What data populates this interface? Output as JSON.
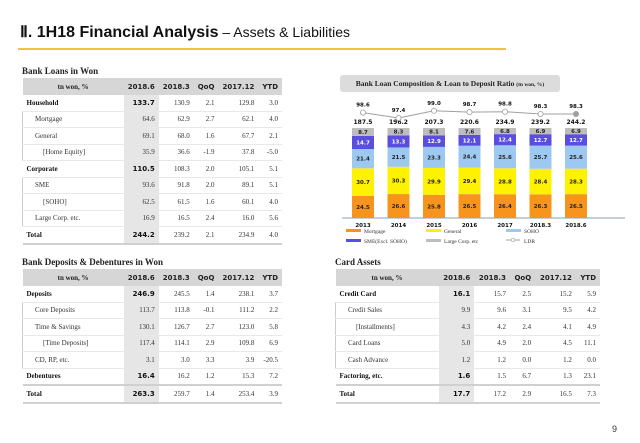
{
  "header": {
    "title_main": "Ⅱ. 1H18 Financial Analysis",
    "title_sub": " – Assets & Liabilities",
    "accent_color": "#f0c33c"
  },
  "page_number": "9",
  "bank_loans": {
    "title": "Bank Loans in Won",
    "columns": [
      "tn won, %",
      "2018.6",
      "2018.3",
      "QoQ",
      "2017.12",
      "YTD"
    ],
    "rows": [
      {
        "label": "Household",
        "level": 0,
        "values": [
          "133.7",
          "130.9",
          "2.1",
          "129.8",
          "3.0"
        ]
      },
      {
        "label": "Mortgage",
        "level": 1,
        "values": [
          "64.6",
          "62.9",
          "2.7",
          "62.1",
          "4.0"
        ]
      },
      {
        "label": "General",
        "level": 1,
        "values": [
          "69.1",
          "68.0",
          "1.6",
          "67.7",
          "2.1"
        ]
      },
      {
        "label": "[Home Equity]",
        "level": 2,
        "values": [
          "35.9",
          "36.6",
          "-1.9",
          "37.8",
          "-5.0"
        ]
      },
      {
        "label": "Corporate",
        "level": 0,
        "values": [
          "110.5",
          "108.3",
          "2.0",
          "105.1",
          "5.1"
        ]
      },
      {
        "label": "SME",
        "level": 1,
        "values": [
          "93.6",
          "91.8",
          "2.0",
          "89.1",
          "5.1"
        ]
      },
      {
        "label": "[SOHO]",
        "level": 2,
        "values": [
          "62.5",
          "61.5",
          "1.6",
          "60.1",
          "4.0"
        ]
      },
      {
        "label": "Large Corp. etc.",
        "level": 1,
        "values": [
          "16.9",
          "16.5",
          "2.4",
          "16.0",
          "5.6"
        ]
      },
      {
        "label": "Total",
        "level": 0,
        "values": [
          "244.2",
          "239.2",
          "2.1",
          "234.9",
          "4.0"
        ]
      }
    ]
  },
  "deposits": {
    "title": "Bank Deposits & Debentures in Won",
    "columns": [
      "tn won, %",
      "2018.6",
      "2018.3",
      "QoQ",
      "2017.12",
      "YTD"
    ],
    "rows": [
      {
        "label": "Deposits",
        "level": 0,
        "values": [
          "246.9",
          "245.5",
          "1.4",
          "238.1",
          "3.7"
        ]
      },
      {
        "label": "Core Deposits",
        "level": 1,
        "values": [
          "113.7",
          "113.8",
          "-0.1",
          "111.2",
          "2.2"
        ]
      },
      {
        "label": "Time & Savings",
        "level": 1,
        "values": [
          "130.1",
          "126.7",
          "2.7",
          "123.0",
          "5.8"
        ]
      },
      {
        "label": "[Time Deposits]",
        "level": 2,
        "values": [
          "117.4",
          "114.1",
          "2.9",
          "109.8",
          "6.9"
        ]
      },
      {
        "label": "CD, RP, etc.",
        "level": 1,
        "values": [
          "3.1",
          "3.0",
          "3.3",
          "3.9",
          "-20.5"
        ]
      },
      {
        "label": "Debentures",
        "level": 0,
        "values": [
          "16.4",
          "16.2",
          "1.2",
          "15.3",
          "7.2"
        ]
      },
      {
        "label": "Total",
        "level": 0,
        "values": [
          "263.3",
          "259.7",
          "1.4",
          "253.4",
          "3.9"
        ]
      }
    ]
  },
  "card_assets": {
    "title": "Card Assets",
    "columns": [
      "tn won, %",
      "2018.6",
      "2018.3",
      "QoQ",
      "2017.12",
      "YTD"
    ],
    "rows": [
      {
        "label": "Credit Card",
        "level": 0,
        "values": [
          "16.1",
          "15.7",
          "2.5",
          "15.2",
          "5.9"
        ]
      },
      {
        "label": "Credit Sales",
        "level": 1,
        "values": [
          "9.9",
          "9.6",
          "3.1",
          "9.5",
          "4.2"
        ]
      },
      {
        "label": "[Installments]",
        "level": 2,
        "values": [
          "4.3",
          "4.2",
          "2.4",
          "4.1",
          "4.9"
        ]
      },
      {
        "label": "Card Loans",
        "level": 1,
        "values": [
          "5.0",
          "4.9",
          "2.0",
          "4.5",
          "11.1"
        ]
      },
      {
        "label": "Cash Advance",
        "level": 1,
        "values": [
          "1.2",
          "1.2",
          "0.0",
          "1.2",
          "0.0"
        ]
      },
      {
        "label": "Factoring, etc.",
        "level": 0,
        "values": [
          "1.6",
          "1.5",
          "6.7",
          "1.3",
          "23.1"
        ]
      },
      {
        "label": "Total",
        "level": 0,
        "values": [
          "17.7",
          "17.2",
          "2.9",
          "16.5",
          "7.3"
        ]
      }
    ]
  },
  "chart_data": {
    "type": "bar",
    "stacked": true,
    "title": "Bank Loan Composition & Loan to Deposit Ratio",
    "title_unit": "(tn won, %)",
    "categories": [
      "2013",
      "2014",
      "2015",
      "2016",
      "2017",
      "2018.3",
      "2018.6"
    ],
    "totals": [
      "187.5",
      "196.2",
      "207.3",
      "220.6",
      "234.9",
      "239.2",
      "244.2"
    ],
    "series": [
      {
        "name": "Mortgage",
        "color": "#f7941d",
        "values": [
          24.5,
          26.6,
          25.8,
          26.5,
          26.4,
          26.3,
          26.5
        ]
      },
      {
        "name": "General",
        "color": "#fff200",
        "values": [
          30.7,
          30.3,
          29.9,
          29.4,
          28.8,
          28.4,
          28.3
        ]
      },
      {
        "name": "SOHO",
        "color": "#9dc8f0",
        "values": [
          21.4,
          21.5,
          23.3,
          24.4,
          25.6,
          25.7,
          25.6
        ]
      },
      {
        "name": "SME(Excl. SOHO)",
        "color": "#5a4ee0",
        "values": [
          14.7,
          13.3,
          12.9,
          12.1,
          12.4,
          12.7,
          12.7
        ]
      },
      {
        "name": "Large Corp. etc",
        "color": "#bdbdbd",
        "values": [
          8.7,
          8.3,
          8.1,
          7.6,
          6.8,
          6.9,
          6.9
        ]
      }
    ],
    "line": {
      "name": "LDR",
      "color": "#a0a0a0",
      "values": [
        98.6,
        97.4,
        99.0,
        98.7,
        98.8,
        98.3,
        98.3
      ]
    },
    "legend": [
      "Mortgage",
      "General",
      "SOHO",
      "SME(Excl. SOHO)",
      "Large Corp. etc",
      "LDR"
    ],
    "legend_position": "bottom",
    "ylim": [
      0,
      100
    ],
    "grid": false
  }
}
